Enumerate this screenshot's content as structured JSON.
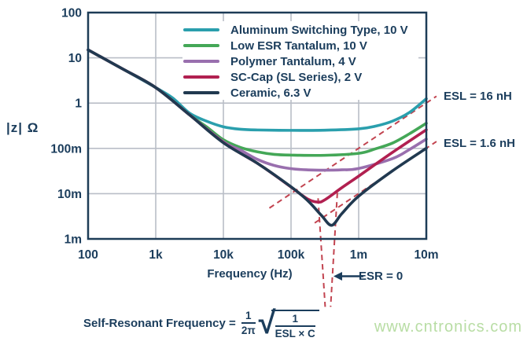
{
  "watermark": "www.cntronics.com",
  "chart_data": {
    "type": "line",
    "title": "",
    "xlabel": "Frequency (Hz)",
    "ylabel": "|z| Ω",
    "x_axis": "log frequency, Hz",
    "y_axis": "log impedance magnitude, Ohm",
    "x_log_range": [
      2,
      7
    ],
    "y_log_range": [
      -3,
      2
    ],
    "grid": true,
    "legend_position": "top-inside",
    "x_ticks": [
      {
        "label": "100",
        "log": 2
      },
      {
        "label": "1k",
        "log": 3
      },
      {
        "label": "10k",
        "log": 4
      },
      {
        "label": "100k",
        "log": 5
      },
      {
        "label": "1m",
        "log": 6
      },
      {
        "label": "10m",
        "log": 7
      }
    ],
    "y_ticks": [
      {
        "label": "100",
        "log": 2
      },
      {
        "label": "10",
        "log": 1
      },
      {
        "label": "1",
        "log": 0
      },
      {
        "label": "100m",
        "log": -1
      },
      {
        "label": "10m",
        "log": -2
      },
      {
        "label": "1m",
        "log": -3
      }
    ],
    "series": [
      {
        "name": "Aluminum Switching Type, 10 V",
        "color": "#2a9fad",
        "points": [
          [
            2,
            15
          ],
          [
            2.5,
            5.8
          ],
          [
            3,
            2.2
          ],
          [
            3.25,
            1.3
          ],
          [
            3.5,
            0.6
          ],
          [
            3.75,
            0.4
          ],
          [
            4,
            0.3
          ],
          [
            4.25,
            0.265
          ],
          [
            4.5,
            0.255
          ],
          [
            5,
            0.25
          ],
          [
            5.5,
            0.252
          ],
          [
            6,
            0.27
          ],
          [
            6.25,
            0.31
          ],
          [
            6.5,
            0.4
          ],
          [
            6.75,
            0.62
          ],
          [
            7,
            1.25
          ]
        ]
      },
      {
        "name": "Low ESR Tantalum, 10 V",
        "color": "#44a757",
        "points": [
          [
            2,
            15
          ],
          [
            2.5,
            5.8
          ],
          [
            3,
            2.2
          ],
          [
            3.5,
            0.55
          ],
          [
            3.75,
            0.3
          ],
          [
            4,
            0.155
          ],
          [
            4.25,
            0.105
          ],
          [
            4.5,
            0.084
          ],
          [
            4.75,
            0.0737
          ],
          [
            5,
            0.071
          ],
          [
            5.5,
            0.0703
          ],
          [
            6,
            0.0777
          ],
          [
            6.25,
            0.098
          ],
          [
            6.5,
            0.131
          ],
          [
            6.75,
            0.21
          ],
          [
            7,
            0.359
          ]
        ]
      },
      {
        "name": "Polymer Tantalum, 4 V",
        "color": "#996fae",
        "points": [
          [
            2,
            15
          ],
          [
            2.5,
            5.8
          ],
          [
            3,
            2.2
          ],
          [
            3.5,
            0.55
          ],
          [
            4,
            0.14
          ],
          [
            4.25,
            0.092
          ],
          [
            4.5,
            0.0574
          ],
          [
            4.75,
            0.042
          ],
          [
            5,
            0.0356
          ],
          [
            5.25,
            0.0335
          ],
          [
            5.5,
            0.033
          ],
          [
            5.75,
            0.0336
          ],
          [
            6,
            0.0359
          ],
          [
            6.5,
            0.0593
          ],
          [
            6.75,
            0.0943
          ],
          [
            7,
            0.1605
          ]
        ]
      },
      {
        "name": "SC-Cap (SL Series), 2 V",
        "color": "#b12050",
        "points": [
          [
            2,
            15
          ],
          [
            2.5,
            5.8
          ],
          [
            3,
            2.2
          ],
          [
            3.5,
            0.55
          ],
          [
            4,
            0.135
          ],
          [
            4.5,
            0.0471
          ],
          [
            4.75,
            0.0261
          ],
          [
            5,
            0.014
          ],
          [
            5.25,
            0.00755
          ],
          [
            5.4,
            0.0065
          ],
          [
            5.5,
            0.0073
          ],
          [
            5.75,
            0.0135
          ],
          [
            6,
            0.0244
          ],
          [
            6.5,
            0.0815
          ],
          [
            7,
            0.258
          ]
        ]
      },
      {
        "name": "Ceramic, 6.3 V",
        "color": "#213950",
        "points": [
          [
            2,
            15
          ],
          [
            2.5,
            5.8
          ],
          [
            3,
            2.2
          ],
          [
            3.5,
            0.55
          ],
          [
            4,
            0.133
          ],
          [
            4.5,
            0.0472
          ],
          [
            5,
            0.01415
          ],
          [
            5.25,
            0.00695
          ],
          [
            5.45,
            0.0033
          ],
          [
            5.6,
            0.002
          ],
          [
            5.75,
            0.0036
          ],
          [
            6,
            0.0088
          ],
          [
            6.5,
            0.0319
          ],
          [
            7,
            0.1006
          ]
        ]
      }
    ],
    "guides": [
      {
        "name": "esl-16nh-line",
        "color": "#c24450",
        "points": [
          [
            4.68,
            0.0048
          ],
          [
            7.15,
            1.42
          ]
        ]
      },
      {
        "name": "esl-1p6nh-line",
        "color": "#c24450",
        "points": [
          [
            5.35,
            0.00225
          ],
          [
            7.15,
            0.142
          ]
        ]
      },
      {
        "name": "esr0-left-asymptote",
        "color": "#c24450",
        "points": [
          [
            5.4,
            0.0079
          ],
          [
            5.505,
            3.16e-05
          ]
        ]
      },
      {
        "name": "esr0-right-asymptote",
        "color": "#c24450",
        "points": [
          [
            5.685,
            0.0105
          ],
          [
            5.585,
            3.16e-05
          ]
        ]
      }
    ],
    "annotations": {
      "esl16": "ESL = 16 nH",
      "esl1p6": "ESL = 1.6 nH",
      "esr0": "ESR = 0"
    },
    "formula": {
      "prefix": "Self-Resonant Frequency =",
      "frac_num": "1",
      "frac_den": "2π",
      "sqrt_num": "1",
      "sqrt_den": "ESL × C"
    },
    "colors": {
      "axis": "#1d3c57",
      "grid": "#b9bec7",
      "text": "#1b3d5c",
      "guide": "#c24450"
    }
  }
}
